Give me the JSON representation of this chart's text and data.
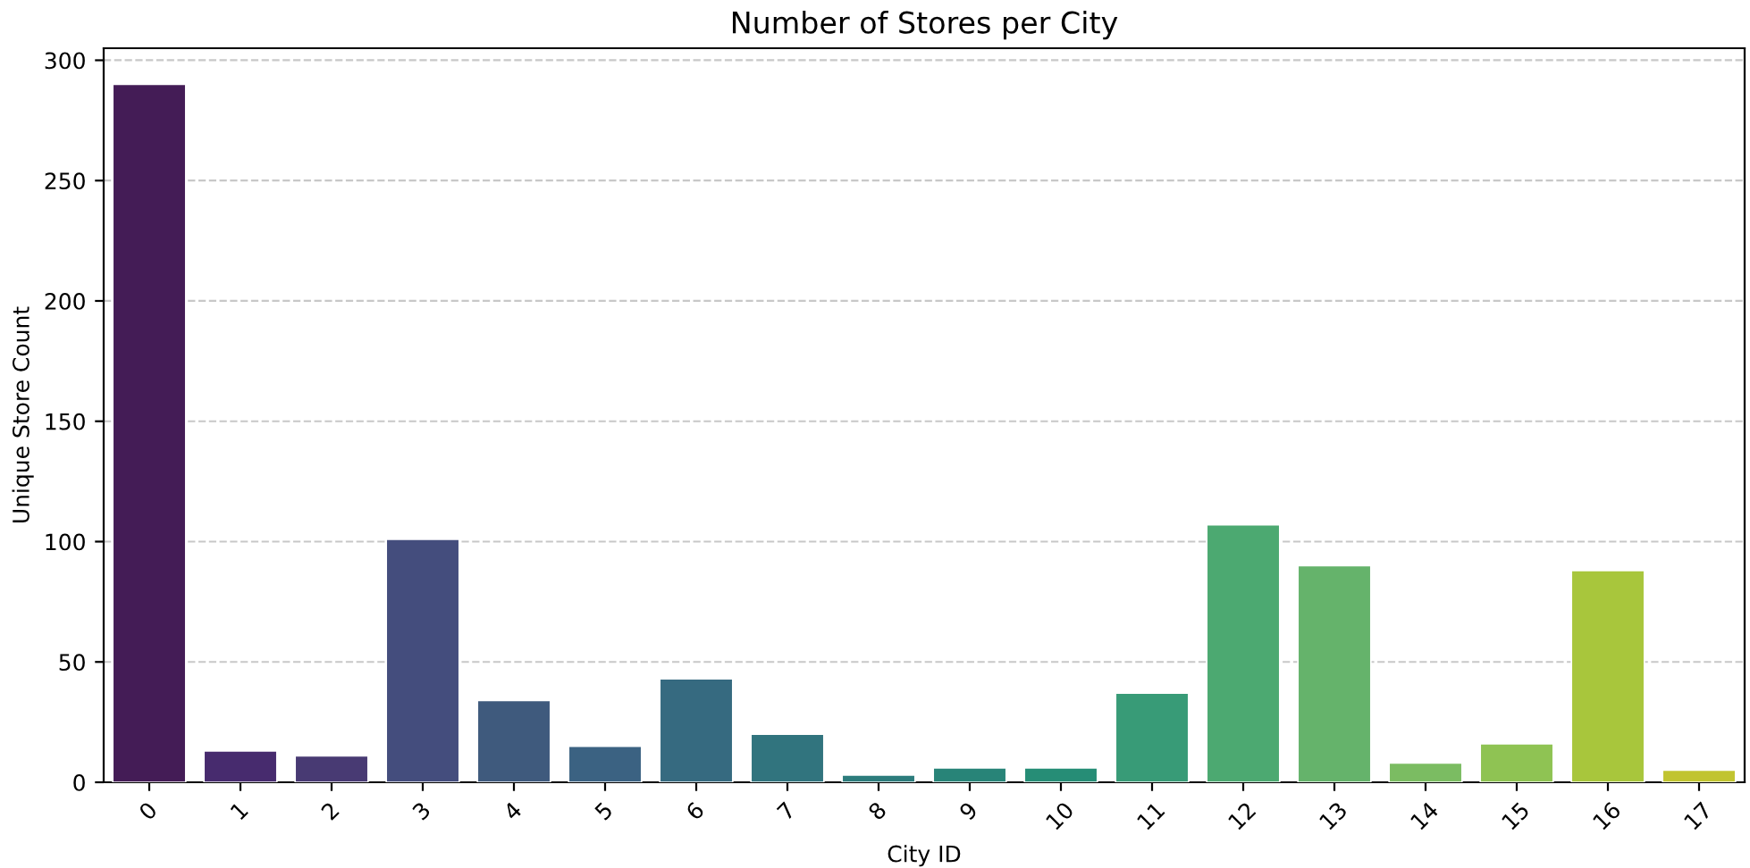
{
  "chart_data": {
    "type": "bar",
    "title": "Number of Stores per City",
    "xlabel": "City ID",
    "ylabel": "Unique Store Count",
    "categories": [
      "0",
      "1",
      "2",
      "3",
      "4",
      "5",
      "6",
      "7",
      "8",
      "9",
      "10",
      "11",
      "12",
      "13",
      "14",
      "15",
      "16",
      "17"
    ],
    "values": [
      290,
      13,
      11,
      101,
      34,
      15,
      43,
      20,
      3,
      6,
      6,
      37,
      107,
      90,
      8,
      16,
      88,
      5
    ],
    "colors": [
      "#441c56",
      "#472b6e",
      "#483a73",
      "#444d7d",
      "#3f5a7d",
      "#3b6282",
      "#366a80",
      "#31747e",
      "#2c7c7c",
      "#288478",
      "#268d76",
      "#389b77",
      "#4ca971",
      "#65b36b",
      "#7bbc62",
      "#8fc353",
      "#a8c63c",
      "#c1c430"
    ],
    "ylim": [
      0,
      305
    ],
    "yticks": [
      0,
      50,
      100,
      150,
      200,
      250,
      300
    ],
    "grid": "y"
  }
}
